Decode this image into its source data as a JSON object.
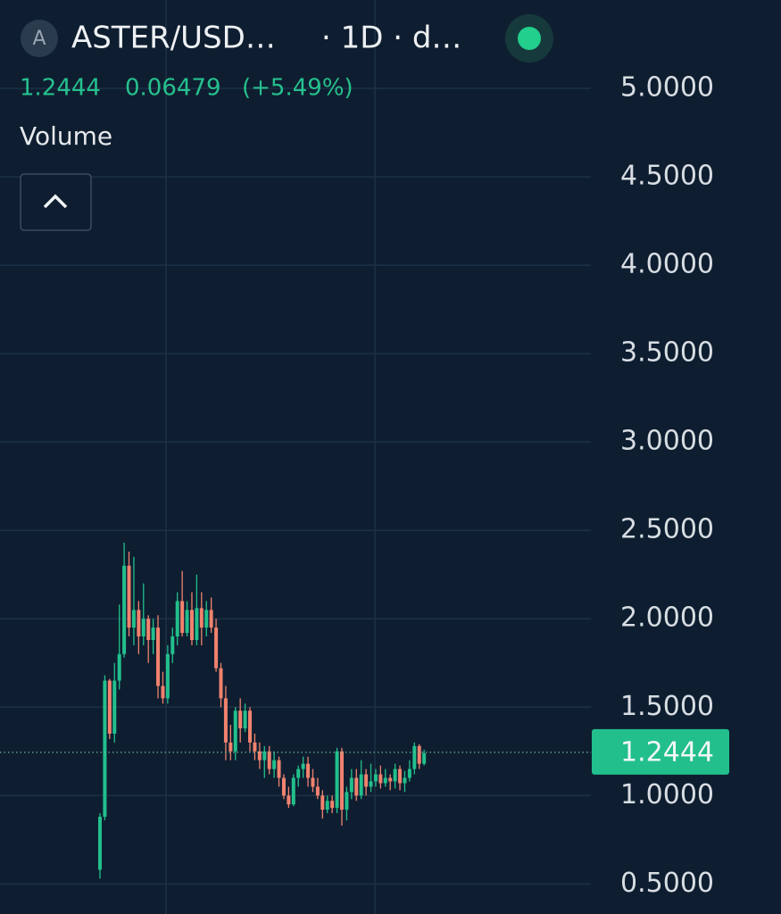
{
  "header": {
    "icon": "A",
    "symbol": "ASTER/USD…",
    "interval": "· 1D · d…",
    "change": "0.06479",
    "change_pct": "(+5.49%)",
    "indicator": "Volume"
  },
  "chart_data": {
    "type": "candlestick",
    "up_color": "#22bf8c",
    "down_color": "#f0826e",
    "grid": true,
    "ylim": [
      0.33,
      5.5
    ],
    "yticks": [
      {
        "value": 0.5,
        "label": "0.5000"
      },
      {
        "value": 1,
        "label": "1.0000"
      },
      {
        "value": 1.5,
        "label": "1.5000"
      },
      {
        "value": 2,
        "label": "2.0000"
      },
      {
        "value": 2.5,
        "label": "2.5000"
      },
      {
        "value": 3,
        "label": "3.0000"
      },
      {
        "value": 3.5,
        "label": "3.5000"
      },
      {
        "value": 4,
        "label": "4.0000"
      },
      {
        "value": 4.5,
        "label": "4.5000"
      },
      {
        "value": 5,
        "label": "5.0000"
      }
    ],
    "last_price": 1.2444,
    "open": [
      0.58,
      0.88,
      1.65,
      1.35,
      1.65,
      1.8,
      2.3,
      1.95,
      2.05,
      1.9,
      2.0,
      1.88,
      1.95,
      1.62,
      1.55,
      1.8,
      1.9,
      2.1,
      1.92,
      2.05,
      1.88,
      2.06,
      1.95,
      2.05,
      1.95,
      1.72,
      1.55,
      1.3,
      1.25,
      1.48,
      1.38,
      1.48,
      1.3,
      1.25,
      1.2,
      1.25,
      1.15,
      1.2,
      1.1,
      1.0,
      0.95,
      1.1,
      1.15,
      1.18,
      1.1,
      1.05,
      1.0,
      0.92,
      0.97,
      0.93,
      1.25,
      0.92,
      1.02,
      1.1,
      1.0,
      1.12,
      1.05,
      1.08,
      1.12,
      1.07,
      1.1,
      1.08,
      1.15,
      1.07,
      1.1,
      1.15,
      1.28,
      1.18
    ],
    "high": [
      0.9,
      1.68,
      1.66,
      1.75,
      2.08,
      2.43,
      2.38,
      2.35,
      2.1,
      2.2,
      2.02,
      2.0,
      2.02,
      1.7,
      1.85,
      1.95,
      2.15,
      2.27,
      2.1,
      2.15,
      2.25,
      2.15,
      2.1,
      2.12,
      2.0,
      1.75,
      1.62,
      1.4,
      1.5,
      1.55,
      1.52,
      1.5,
      1.35,
      1.3,
      1.28,
      1.28,
      1.25,
      1.22,
      1.12,
      1.05,
      1.12,
      1.17,
      1.22,
      1.22,
      1.15,
      1.1,
      1.03,
      1.0,
      1.0,
      1.27,
      1.27,
      1.05,
      1.15,
      1.15,
      1.2,
      1.15,
      1.18,
      1.15,
      1.17,
      1.15,
      1.12,
      1.18,
      1.17,
      1.14,
      1.2,
      1.3,
      1.29,
      1.26
    ],
    "low": [
      0.53,
      0.86,
      1.32,
      1.3,
      1.6,
      1.78,
      1.9,
      1.85,
      1.8,
      1.85,
      1.75,
      1.8,
      1.55,
      1.52,
      1.52,
      1.75,
      1.85,
      1.9,
      1.9,
      1.85,
      1.85,
      1.85,
      1.9,
      1.92,
      1.7,
      1.5,
      1.2,
      1.2,
      1.2,
      1.3,
      1.36,
      1.25,
      1.2,
      1.15,
      1.1,
      1.12,
      1.1,
      1.05,
      0.98,
      0.93,
      0.94,
      1.05,
      1.1,
      1.05,
      1.02,
      0.98,
      0.87,
      0.9,
      0.9,
      0.9,
      0.83,
      0.86,
      0.98,
      0.97,
      0.98,
      1.0,
      1.02,
      1.05,
      1.04,
      1.05,
      1.03,
      1.04,
      1.03,
      1.02,
      1.08,
      1.12,
      1.15,
      1.17
    ],
    "close": [
      0.88,
      1.65,
      1.35,
      1.65,
      1.8,
      2.3,
      1.95,
      2.05,
      1.9,
      2.0,
      1.88,
      1.95,
      1.62,
      1.55,
      1.8,
      1.9,
      2.1,
      1.92,
      2.05,
      1.88,
      2.06,
      1.95,
      2.05,
      1.95,
      1.72,
      1.55,
      1.3,
      1.25,
      1.48,
      1.38,
      1.48,
      1.3,
      1.25,
      1.2,
      1.25,
      1.15,
      1.2,
      1.1,
      1.0,
      0.95,
      1.1,
      1.15,
      1.18,
      1.1,
      1.05,
      1.0,
      0.92,
      0.97,
      0.93,
      1.25,
      0.92,
      1.02,
      1.1,
      1.0,
      1.12,
      1.05,
      1.08,
      1.12,
      1.07,
      1.1,
      1.08,
      1.15,
      1.07,
      1.1,
      1.15,
      1.28,
      1.18,
      1.24
    ]
  }
}
